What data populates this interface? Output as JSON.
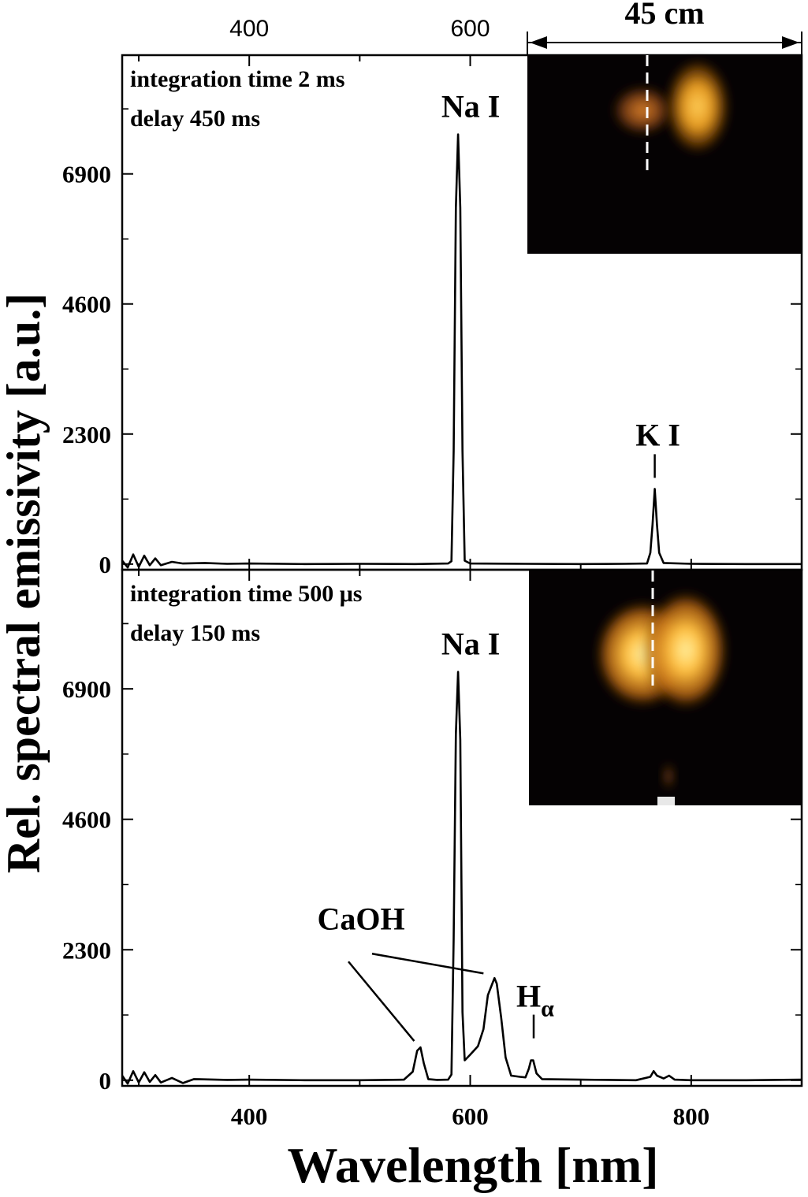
{
  "chart_data": [
    {
      "type": "line",
      "panel": "top",
      "annotations": {
        "conditions": [
          "integration time 2 ms",
          "delay 450 ms"
        ],
        "peak_labels": [
          {
            "text": "Na I",
            "x": 589
          },
          {
            "text": "K I",
            "x": 767
          }
        ],
        "inset_scale_label": "45 cm"
      },
      "xlim": [
        285,
        900
      ],
      "ylim": [
        -100,
        9000
      ],
      "x_ticks": [
        400,
        600
      ],
      "y_ticks": [
        0,
        2300,
        4600,
        6900
      ],
      "grid": false,
      "series": [
        {
          "values": [
            [
              285,
              60
            ],
            [
              290,
              -60
            ],
            [
              295,
              170
            ],
            [
              300,
              -50
            ],
            [
              305,
              150
            ],
            [
              310,
              -20
            ],
            [
              315,
              100
            ],
            [
              320,
              -20
            ],
            [
              330,
              40
            ],
            [
              340,
              10
            ],
            [
              360,
              20
            ],
            [
              380,
              5
            ],
            [
              400,
              10
            ],
            [
              450,
              0
            ],
            [
              500,
              5
            ],
            [
              550,
              0
            ],
            [
              580,
              10
            ],
            [
              583,
              50
            ],
            [
              585,
              2000
            ],
            [
              587,
              6300
            ],
            [
              589,
              7600
            ],
            [
              591,
              6300
            ],
            [
              593,
              2000
            ],
            [
              595,
              60
            ],
            [
              600,
              10
            ],
            [
              650,
              5
            ],
            [
              700,
              0
            ],
            [
              740,
              5
            ],
            [
              760,
              10
            ],
            [
              763,
              200
            ],
            [
              765,
              700
            ],
            [
              767,
              1330
            ],
            [
              769,
              700
            ],
            [
              771,
              200
            ],
            [
              775,
              20
            ],
            [
              800,
              5
            ],
            [
              850,
              0
            ],
            [
              900,
              0
            ]
          ]
        }
      ]
    },
    {
      "type": "line",
      "panel": "bottom",
      "annotations": {
        "conditions": [
          "integration time 500 μs",
          "delay 150 ms"
        ],
        "peak_labels": [
          {
            "text": "Na I",
            "x": 589
          },
          {
            "text": "CaOH",
            "x": [
              555,
              622
            ]
          },
          {
            "text": "H",
            "subscript": "α",
            "x": 656
          }
        ]
      },
      "xlim": [
        285,
        900
      ],
      "ylim": [
        -100,
        9000
      ],
      "x_ticks": [
        400,
        600,
        800
      ],
      "y_ticks": [
        0,
        2300,
        4600,
        6900
      ],
      "xlabel": "Wavelength [nm]",
      "ylabel": "Rel. spectral emissivity [a.u.]",
      "grid": false,
      "series": [
        {
          "values": [
            [
              285,
              80
            ],
            [
              290,
              -60
            ],
            [
              295,
              160
            ],
            [
              300,
              -40
            ],
            [
              305,
              140
            ],
            [
              310,
              -30
            ],
            [
              315,
              90
            ],
            [
              320,
              -40
            ],
            [
              330,
              40
            ],
            [
              340,
              -50
            ],
            [
              350,
              20
            ],
            [
              380,
              5
            ],
            [
              400,
              10
            ],
            [
              450,
              0
            ],
            [
              500,
              0
            ],
            [
              540,
              10
            ],
            [
              548,
              150
            ],
            [
              552,
              520
            ],
            [
              555,
              580
            ],
            [
              558,
              300
            ],
            [
              562,
              20
            ],
            [
              570,
              5
            ],
            [
              580,
              10
            ],
            [
              583,
              100
            ],
            [
              585,
              2500
            ],
            [
              587,
              6100
            ],
            [
              589,
              7200
            ],
            [
              591,
              6000
            ],
            [
              593,
              1200
            ],
            [
              595,
              350
            ],
            [
              600,
              450
            ],
            [
              607,
              600
            ],
            [
              612,
              900
            ],
            [
              616,
              1500
            ],
            [
              620,
              1700
            ],
            [
              622,
              1800
            ],
            [
              624,
              1700
            ],
            [
              628,
              1100
            ],
            [
              632,
              400
            ],
            [
              637,
              80
            ],
            [
              645,
              60
            ],
            [
              650,
              50
            ],
            [
              653,
              200
            ],
            [
              655,
              350
            ],
            [
              657,
              350
            ],
            [
              660,
              120
            ],
            [
              665,
              20
            ],
            [
              700,
              10
            ],
            [
              750,
              0
            ],
            [
              763,
              60
            ],
            [
              766,
              160
            ],
            [
              769,
              80
            ],
            [
              775,
              30
            ],
            [
              780,
              80
            ],
            [
              785,
              10
            ],
            [
              800,
              0
            ],
            [
              850,
              0
            ],
            [
              900,
              10
            ]
          ]
        }
      ]
    }
  ]
}
